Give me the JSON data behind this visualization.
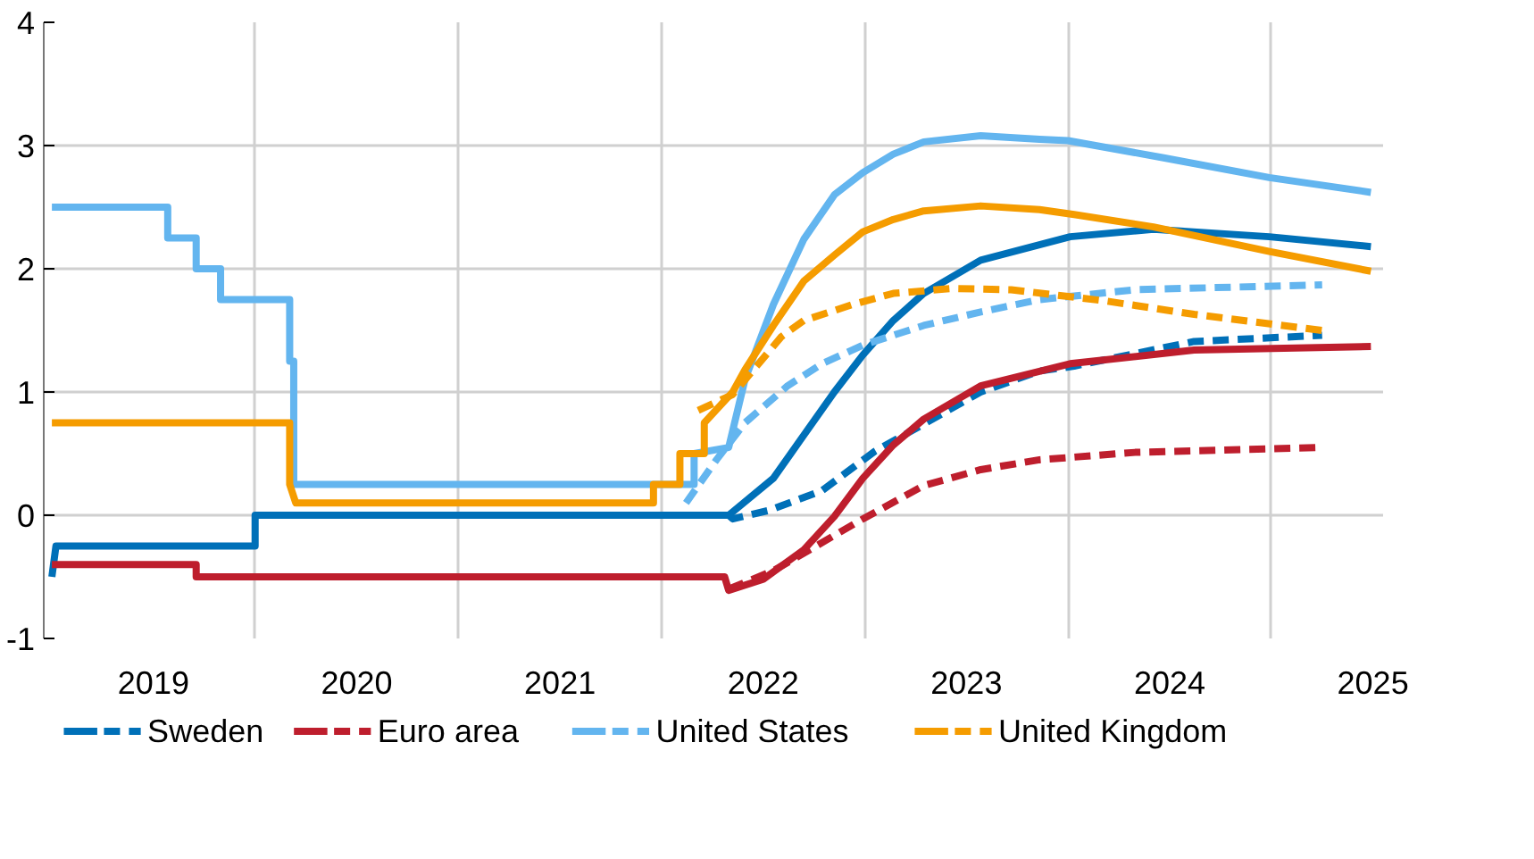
{
  "chart_data": {
    "type": "line",
    "xlim": [
      2018.96,
      2025.55
    ],
    "ylim": [
      -1,
      4
    ],
    "xticks": [
      {
        "value": 2019.5,
        "label": "2019"
      },
      {
        "value": 2020,
        "label": null
      },
      {
        "value": 2020.5,
        "label": "2020"
      },
      {
        "value": 2021,
        "label": null
      },
      {
        "value": 2021.5,
        "label": "2021"
      },
      {
        "value": 2022,
        "label": null
      },
      {
        "value": 2022.5,
        "label": "2022"
      },
      {
        "value": 2023,
        "label": null
      },
      {
        "value": 2023.5,
        "label": "2023"
      },
      {
        "value": 2024,
        "label": null
      },
      {
        "value": 2024.5,
        "label": "2024"
      },
      {
        "value": 2025,
        "label": null
      },
      {
        "value": 2025.5,
        "label": "2025"
      }
    ],
    "yticks": [
      -1,
      0,
      1,
      2,
      3,
      4
    ],
    "grid": true,
    "legend": "bottom",
    "series": [
      {
        "name": "Sweden",
        "color": "#0070b8",
        "line_style": "solid",
        "x": [
          2019.0,
          2019.02,
          2020.0,
          2020.0,
          2022.31,
          2022.33,
          2022.55,
          2022.7,
          2022.85,
          2022.99,
          2023.14,
          2023.29,
          2023.57,
          2024.01,
          2024.42,
          2024.99,
          2025.49
        ],
        "values": [
          -0.5,
          -0.25,
          -0.25,
          0,
          0,
          0,
          0.3,
          0.65,
          1.0,
          1.3,
          1.58,
          1.8,
          2.07,
          2.26,
          2.32,
          2.26,
          2.18
        ]
      },
      {
        "color": "#0070b8",
        "line_style": "dashed",
        "x": [
          2022.33,
          2022.35,
          2022.53,
          2022.79,
          2023.05,
          2023.29,
          2023.57,
          2023.86,
          2024.03,
          2024.62,
          2025.25
        ],
        "values": [
          0,
          -0.03,
          0.04,
          0.2,
          0.52,
          0.74,
          1.0,
          1.17,
          1.21,
          1.41,
          1.46
        ]
      },
      {
        "name": "Euro area",
        "color": "#be1e2d",
        "line_style": "solid",
        "x": [
          2019.0,
          2019.71,
          2019.71,
          2022.31,
          2022.33,
          2022.5,
          2022.7,
          2022.85,
          2022.99,
          2023.14,
          2023.29,
          2023.57,
          2024.01,
          2024.62,
          2025.49
        ],
        "values": [
          -0.4,
          -0.4,
          -0.5,
          -0.5,
          -0.61,
          -0.52,
          -0.28,
          -0.01,
          0.3,
          0.57,
          0.78,
          1.05,
          1.23,
          1.34,
          1.37
        ]
      },
      {
        "color": "#be1e2d",
        "line_style": "dashed",
        "x": [
          2022.33,
          2022.55,
          2022.76,
          2022.99,
          2023.29,
          2023.57,
          2023.86,
          2024.33,
          2025.25
        ],
        "values": [
          -0.6,
          -0.45,
          -0.25,
          -0.03,
          0.24,
          0.37,
          0.45,
          0.51,
          0.55
        ]
      },
      {
        "name": "United States",
        "color": "#63b5ef",
        "line_style": "solid",
        "x": [
          2019.0,
          2019.57,
          2019.57,
          2019.71,
          2019.71,
          2019.83,
          2019.83,
          2020.17,
          2020.17,
          2020.19,
          2020.19,
          2022.16,
          2022.16,
          2022.33,
          2022.41,
          2022.55,
          2022.7,
          2022.85,
          2022.99,
          2023.14,
          2023.29,
          2023.57,
          2023.86,
          2024.0,
          2024.47,
          2024.99,
          2025.49
        ],
        "values": [
          2.5,
          2.5,
          2.25,
          2.25,
          2.0,
          2.0,
          1.75,
          1.75,
          1.25,
          1.25,
          0.25,
          0.25,
          0.5,
          0.55,
          1.1,
          1.71,
          2.24,
          2.6,
          2.78,
          2.93,
          3.03,
          3.08,
          3.05,
          3.04,
          2.9,
          2.74,
          2.62
        ]
      },
      {
        "color": "#63b5ef",
        "line_style": "dashed",
        "x": [
          2022.12,
          2022.27,
          2022.41,
          2022.62,
          2022.79,
          2022.99,
          2023.29,
          2023.57,
          2023.86,
          2024.33,
          2025.25
        ],
        "values": [
          0.1,
          0.45,
          0.75,
          1.05,
          1.23,
          1.38,
          1.54,
          1.65,
          1.75,
          1.83,
          1.87
        ]
      },
      {
        "name": "United Kingdom",
        "color": "#f59c00",
        "line_style": "solid",
        "x": [
          2019.0,
          2020.17,
          2020.17,
          2020.2,
          2021.96,
          2021.96,
          2022.09,
          2022.09,
          2022.21,
          2022.21,
          2022.35,
          2022.41,
          2022.55,
          2022.7,
          2022.85,
          2022.99,
          2023.14,
          2023.29,
          2023.57,
          2023.86,
          2024.03,
          2024.42,
          2024.99,
          2025.49
        ],
        "values": [
          0.75,
          0.75,
          0.25,
          0.1,
          0.1,
          0.25,
          0.25,
          0.5,
          0.5,
          0.75,
          1.0,
          1.18,
          1.54,
          1.9,
          2.11,
          2.3,
          2.4,
          2.47,
          2.51,
          2.48,
          2.44,
          2.34,
          2.14,
          1.98
        ]
      },
      {
        "color": "#f59c00",
        "line_style": "dashed",
        "x": [
          2022.18,
          2022.35,
          2022.59,
          2022.7,
          2022.94,
          2023.14,
          2023.43,
          2023.72,
          2024.18,
          2024.62,
          2025.25
        ],
        "values": [
          0.85,
          0.98,
          1.45,
          1.58,
          1.71,
          1.8,
          1.84,
          1.83,
          1.74,
          1.63,
          1.5
        ]
      }
    ]
  }
}
